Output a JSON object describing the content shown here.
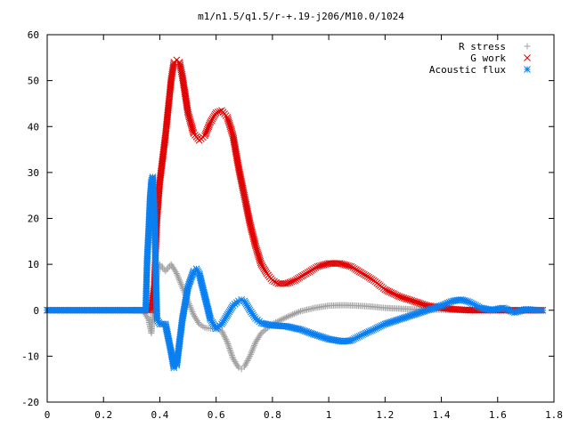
{
  "chart_data": {
    "type": "scatter",
    "title": "m1/n1.5/q1.5/r-+.19-j206/M10.0/1024",
    "xlabel": "",
    "ylabel": "",
    "xlim": [
      0,
      1.8
    ],
    "ylim": [
      -20,
      60
    ],
    "x_ticks": [
      "0",
      "0.2",
      "0.4",
      "0.6",
      "0.8",
      "1",
      "1.2",
      "1.4",
      "1.6",
      "1.8"
    ],
    "y_ticks": [
      "-20",
      "-10",
      "0",
      "10",
      "20",
      "30",
      "40",
      "50",
      "60"
    ],
    "grid": false,
    "legend_position": "top-right",
    "series": [
      {
        "name": "R stress",
        "marker": "+",
        "color": "#a0a0a0",
        "points": [
          [
            0.0,
            0
          ],
          [
            0.1,
            0
          ],
          [
            0.2,
            0
          ],
          [
            0.3,
            0
          ],
          [
            0.34,
            0
          ],
          [
            0.36,
            -2
          ],
          [
            0.37,
            -5
          ],
          [
            0.38,
            2
          ],
          [
            0.39,
            8
          ],
          [
            0.4,
            10
          ],
          [
            0.42,
            8.5
          ],
          [
            0.44,
            10
          ],
          [
            0.46,
            8
          ],
          [
            0.48,
            5
          ],
          [
            0.5,
            2
          ],
          [
            0.52,
            -1
          ],
          [
            0.54,
            -3
          ],
          [
            0.56,
            -3.8
          ],
          [
            0.58,
            -4
          ],
          [
            0.6,
            -4
          ],
          [
            0.62,
            -4.5
          ],
          [
            0.64,
            -7
          ],
          [
            0.66,
            -10.5
          ],
          [
            0.68,
            -12.5
          ],
          [
            0.69,
            -12.8
          ],
          [
            0.7,
            -12.3
          ],
          [
            0.72,
            -10
          ],
          [
            0.74,
            -7
          ],
          [
            0.76,
            -5
          ],
          [
            0.8,
            -3
          ],
          [
            0.85,
            -1.5
          ],
          [
            0.9,
            -0.2
          ],
          [
            0.95,
            0.5
          ],
          [
            1.0,
            1
          ],
          [
            1.05,
            1.1
          ],
          [
            1.1,
            1
          ],
          [
            1.15,
            0.8
          ],
          [
            1.2,
            0.5
          ],
          [
            1.3,
            0.2
          ],
          [
            1.4,
            0.1
          ],
          [
            1.5,
            0
          ],
          [
            1.6,
            0
          ],
          [
            1.7,
            0
          ],
          [
            1.76,
            0
          ]
        ]
      },
      {
        "name": "G work",
        "marker": "x",
        "color": "#e00000",
        "points": [
          [
            0.0,
            0
          ],
          [
            0.1,
            0
          ],
          [
            0.2,
            0
          ],
          [
            0.3,
            0
          ],
          [
            0.35,
            0
          ],
          [
            0.37,
            0
          ],
          [
            0.38,
            5
          ],
          [
            0.39,
            20
          ],
          [
            0.4,
            28
          ],
          [
            0.42,
            38
          ],
          [
            0.44,
            50
          ],
          [
            0.45,
            54
          ],
          [
            0.46,
            54.5
          ],
          [
            0.47,
            54
          ],
          [
            0.48,
            51
          ],
          [
            0.5,
            43
          ],
          [
            0.52,
            38.5
          ],
          [
            0.54,
            37
          ],
          [
            0.56,
            38
          ],
          [
            0.58,
            41
          ],
          [
            0.6,
            43
          ],
          [
            0.62,
            43.5
          ],
          [
            0.64,
            42
          ],
          [
            0.66,
            38
          ],
          [
            0.68,
            31
          ],
          [
            0.7,
            25
          ],
          [
            0.72,
            19
          ],
          [
            0.74,
            14
          ],
          [
            0.76,
            10
          ],
          [
            0.78,
            8
          ],
          [
            0.8,
            6.5
          ],
          [
            0.82,
            5.8
          ],
          [
            0.85,
            5.8
          ],
          [
            0.88,
            6.5
          ],
          [
            0.92,
            8
          ],
          [
            0.96,
            9.5
          ],
          [
            1.0,
            10.2
          ],
          [
            1.04,
            10.2
          ],
          [
            1.08,
            9.5
          ],
          [
            1.12,
            8
          ],
          [
            1.16,
            6.5
          ],
          [
            1.2,
            4.5
          ],
          [
            1.25,
            3
          ],
          [
            1.3,
            2
          ],
          [
            1.35,
            1
          ],
          [
            1.4,
            0.5
          ],
          [
            1.45,
            0.2
          ],
          [
            1.5,
            0
          ],
          [
            1.6,
            0
          ],
          [
            1.7,
            0
          ],
          [
            1.76,
            0
          ]
        ]
      },
      {
        "name": "Acoustic flux",
        "marker": "*",
        "color": "#0a7ff0",
        "points": [
          [
            0.0,
            0
          ],
          [
            0.1,
            0
          ],
          [
            0.2,
            0
          ],
          [
            0.3,
            0
          ],
          [
            0.35,
            0
          ],
          [
            0.355,
            11
          ],
          [
            0.36,
            17
          ],
          [
            0.365,
            24
          ],
          [
            0.37,
            28
          ],
          [
            0.375,
            29
          ],
          [
            0.38,
            22
          ],
          [
            0.385,
            10
          ],
          [
            0.39,
            -2
          ],
          [
            0.4,
            -3
          ],
          [
            0.42,
            -3
          ],
          [
            0.44,
            -9
          ],
          [
            0.45,
            -12.5
          ],
          [
            0.46,
            -12
          ],
          [
            0.48,
            -2
          ],
          [
            0.5,
            5
          ],
          [
            0.52,
            8.5
          ],
          [
            0.53,
            9
          ],
          [
            0.54,
            8
          ],
          [
            0.56,
            3
          ],
          [
            0.58,
            -2
          ],
          [
            0.6,
            -4
          ],
          [
            0.62,
            -3
          ],
          [
            0.64,
            -1
          ],
          [
            0.66,
            1
          ],
          [
            0.68,
            2
          ],
          [
            0.69,
            2.3
          ],
          [
            0.7,
            2
          ],
          [
            0.72,
            0
          ],
          [
            0.74,
            -1.8
          ],
          [
            0.76,
            -2.8
          ],
          [
            0.8,
            -3.3
          ],
          [
            0.85,
            -3.5
          ],
          [
            0.9,
            -4.2
          ],
          [
            0.95,
            -5.3
          ],
          [
            1.0,
            -6.3
          ],
          [
            1.05,
            -6.8
          ],
          [
            1.08,
            -6.6
          ],
          [
            1.12,
            -5.3
          ],
          [
            1.16,
            -4.2
          ],
          [
            1.2,
            -3
          ],
          [
            1.25,
            -2
          ],
          [
            1.3,
            -1
          ],
          [
            1.35,
            0
          ],
          [
            1.4,
            1
          ],
          [
            1.44,
            2
          ],
          [
            1.47,
            2.3
          ],
          [
            1.5,
            1.8
          ],
          [
            1.54,
            0.5
          ],
          [
            1.58,
            0
          ],
          [
            1.62,
            0.5
          ],
          [
            1.66,
            -0.5
          ],
          [
            1.7,
            0.2
          ],
          [
            1.74,
            0
          ],
          [
            1.76,
            0
          ]
        ]
      }
    ]
  }
}
